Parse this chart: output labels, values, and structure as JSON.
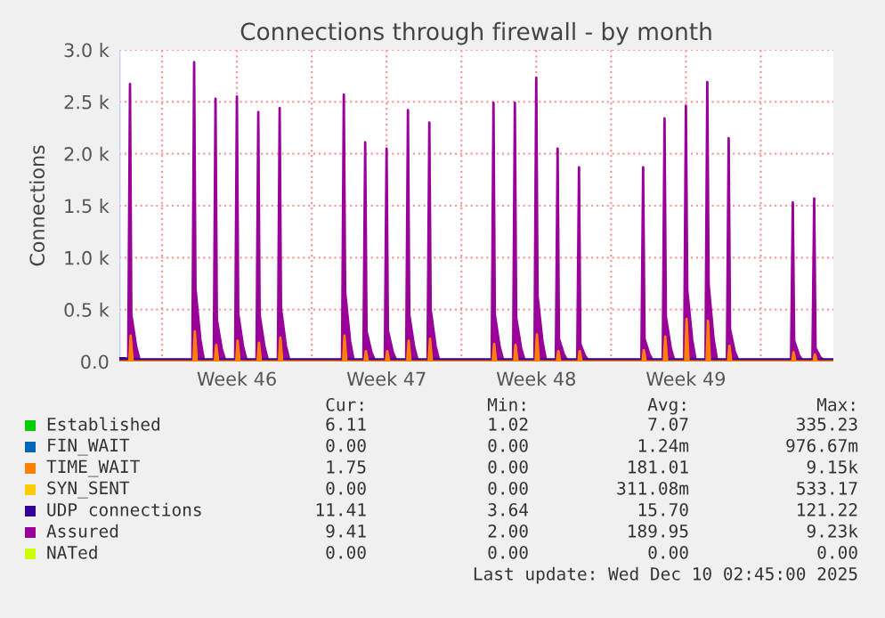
{
  "chart_data": {
    "type": "area",
    "title": "Connections through firewall - by month",
    "ylabel": "Connections",
    "xlim": [
      "2025-11-08T00:00",
      "2025-12-11T09:30"
    ],
    "xticks": [
      {
        "value": "2025-11-10T00:00",
        "label": null
      },
      {
        "value": "2025-11-13T12:00",
        "label": "Week 46"
      },
      {
        "value": "2025-11-17T00:00",
        "label": null
      },
      {
        "value": "2025-11-20T12:00",
        "label": "Week 47"
      },
      {
        "value": "2025-11-24T00:00",
        "label": null
      },
      {
        "value": "2025-11-27T12:00",
        "label": "Week 48"
      },
      {
        "value": "2025-12-01T00:00",
        "label": null
      },
      {
        "value": "2025-12-04T12:00",
        "label": "Week 49"
      },
      {
        "value": "2025-12-08T00:00",
        "label": null
      }
    ],
    "ylim": [
      0,
      3000
    ],
    "yticks": [
      {
        "value": 0,
        "label": "0.0"
      },
      {
        "value": 500,
        "label": "0.5 k"
      },
      {
        "value": 1000,
        "label": "1.0 k"
      },
      {
        "value": 1500,
        "label": "1.5 k"
      },
      {
        "value": 2000,
        "label": "2.0 k"
      },
      {
        "value": 2500,
        "label": "2.5 k"
      },
      {
        "value": 3000,
        "label": "3.0 k"
      }
    ],
    "grid": true,
    "legend": "bottom",
    "series": [
      {
        "name": "Established",
        "color": "#00cc00"
      },
      {
        "name": "FIN_WAIT",
        "color": "#0066b3"
      },
      {
        "name": "TIME_WAIT",
        "color": "#ff8000",
        "x": [
          "2025-11-08T00:00",
          "2025-11-08T11:15",
          "2025-11-08T12:45",
          "2025-11-08T15:00",
          "2025-11-11T11:15",
          "2025-11-11T12:45",
          "2025-11-11T15:00",
          "2025-11-12T11:15",
          "2025-11-12T12:45",
          "2025-11-12T15:00",
          "2025-11-13T11:15",
          "2025-11-13T12:45",
          "2025-11-13T15:00",
          "2025-11-14T11:15",
          "2025-11-14T12:45",
          "2025-11-14T15:00",
          "2025-11-15T11:15",
          "2025-11-15T12:45",
          "2025-11-15T15:00",
          "2025-11-18T11:15",
          "2025-11-18T12:45",
          "2025-11-18T15:00",
          "2025-11-19T11:15",
          "2025-11-19T12:45",
          "2025-11-19T15:00",
          "2025-11-20T11:15",
          "2025-11-20T12:45",
          "2025-11-20T15:00",
          "2025-11-21T11:15",
          "2025-11-21T12:45",
          "2025-11-21T15:00",
          "2025-11-22T11:15",
          "2025-11-22T12:45",
          "2025-11-22T15:00",
          "2025-11-25T11:15",
          "2025-11-25T12:45",
          "2025-11-25T15:00",
          "2025-11-26T11:15",
          "2025-11-26T12:45",
          "2025-11-26T15:00",
          "2025-11-27T11:15",
          "2025-11-27T12:45",
          "2025-11-27T15:00",
          "2025-11-28T11:15",
          "2025-11-28T12:45",
          "2025-11-28T15:00",
          "2025-11-29T11:15",
          "2025-11-29T12:45",
          "2025-11-29T15:00",
          "2025-12-02T11:15",
          "2025-12-02T12:45",
          "2025-12-02T15:00",
          "2025-12-03T11:15",
          "2025-12-03T12:45",
          "2025-12-03T15:00",
          "2025-12-04T11:15",
          "2025-12-04T12:45",
          "2025-12-04T15:00",
          "2025-12-05T11:15",
          "2025-12-05T12:45",
          "2025-12-05T15:00",
          "2025-12-06T11:15",
          "2025-12-06T12:45",
          "2025-12-06T15:00",
          "2025-12-09T11:15",
          "2025-12-09T12:45",
          "2025-12-09T15:00",
          "2025-12-10T11:15",
          "2025-12-10T12:45",
          "2025-12-10T15:00",
          "2025-12-11T09:30"
        ],
        "values": [
          0,
          0,
          250,
          0,
          0,
          290,
          0,
          0,
          160,
          0,
          0,
          200,
          0,
          0,
          180,
          0,
          0,
          230,
          0,
          0,
          250,
          0,
          0,
          100,
          0,
          0,
          100,
          0,
          0,
          200,
          0,
          0,
          220,
          0,
          0,
          170,
          0,
          0,
          160,
          0,
          0,
          260,
          0,
          0,
          100,
          0,
          0,
          100,
          0,
          0,
          110,
          0,
          0,
          240,
          0,
          0,
          410,
          0,
          0,
          390,
          0,
          0,
          150,
          0,
          0,
          90,
          0,
          0,
          70,
          0,
          0
        ]
      },
      {
        "name": "SYN_SENT",
        "color": "#ffcc00"
      },
      {
        "name": "UDP connections",
        "color": "#330099",
        "x": [
          "2025-11-08T00:00",
          "2025-11-08T07:00",
          "2025-11-08T14:00",
          "2025-12-11T09:30"
        ],
        "values": [
          30,
          30,
          20,
          20
        ]
      },
      {
        "name": "Assured",
        "color": "#990099",
        "x": [
          "2025-11-08T00:00",
          "2025-11-08T10:00",
          "2025-11-08T12:00",
          "2025-11-08T13:30",
          "2025-11-08T19:00",
          "2025-11-08T23:00",
          "2025-11-11T10:00",
          "2025-11-11T12:00",
          "2025-11-11T13:30",
          "2025-11-11T19:00",
          "2025-11-11T23:00",
          "2025-11-12T10:00",
          "2025-11-12T12:00",
          "2025-11-12T13:30",
          "2025-11-12T19:00",
          "2025-11-12T23:00",
          "2025-11-13T10:00",
          "2025-11-13T12:00",
          "2025-11-13T13:30",
          "2025-11-13T19:00",
          "2025-11-13T23:00",
          "2025-11-14T10:00",
          "2025-11-14T12:00",
          "2025-11-14T13:30",
          "2025-11-14T19:00",
          "2025-11-14T23:00",
          "2025-11-15T10:00",
          "2025-11-15T12:00",
          "2025-11-15T13:30",
          "2025-11-15T19:00",
          "2025-11-15T23:00",
          "2025-11-18T10:00",
          "2025-11-18T12:00",
          "2025-11-18T13:30",
          "2025-11-18T19:00",
          "2025-11-18T23:00",
          "2025-11-19T10:00",
          "2025-11-19T12:00",
          "2025-11-19T13:30",
          "2025-11-19T19:00",
          "2025-11-19T23:00",
          "2025-11-20T10:00",
          "2025-11-20T12:00",
          "2025-11-20T13:30",
          "2025-11-20T19:00",
          "2025-11-20T23:00",
          "2025-11-21T10:00",
          "2025-11-21T12:00",
          "2025-11-21T13:30",
          "2025-11-21T19:00",
          "2025-11-21T23:00",
          "2025-11-22T10:00",
          "2025-11-22T12:00",
          "2025-11-22T13:30",
          "2025-11-22T19:00",
          "2025-11-22T23:00",
          "2025-11-25T10:00",
          "2025-11-25T12:00",
          "2025-11-25T13:30",
          "2025-11-25T19:00",
          "2025-11-25T23:00",
          "2025-11-26T10:00",
          "2025-11-26T12:00",
          "2025-11-26T13:30",
          "2025-11-26T19:00",
          "2025-11-26T23:00",
          "2025-11-27T10:00",
          "2025-11-27T12:00",
          "2025-11-27T13:30",
          "2025-11-27T19:00",
          "2025-11-27T23:00",
          "2025-11-28T10:00",
          "2025-11-28T12:00",
          "2025-11-28T13:30",
          "2025-11-28T19:00",
          "2025-11-28T23:00",
          "2025-11-29T10:00",
          "2025-11-29T12:00",
          "2025-11-29T13:30",
          "2025-11-29T19:00",
          "2025-11-29T23:00",
          "2025-12-02T10:00",
          "2025-12-02T12:00",
          "2025-12-02T13:30",
          "2025-12-02T19:00",
          "2025-12-02T23:00",
          "2025-12-03T10:00",
          "2025-12-03T12:00",
          "2025-12-03T13:30",
          "2025-12-03T19:00",
          "2025-12-03T23:00",
          "2025-12-04T10:00",
          "2025-12-04T12:00",
          "2025-12-04T13:30",
          "2025-12-04T19:00",
          "2025-12-04T23:00",
          "2025-12-05T10:00",
          "2025-12-05T12:00",
          "2025-12-05T13:30",
          "2025-12-05T19:00",
          "2025-12-05T23:00",
          "2025-12-06T10:00",
          "2025-12-06T12:00",
          "2025-12-06T13:30",
          "2025-12-06T19:00",
          "2025-12-06T23:00",
          "2025-12-09T10:00",
          "2025-12-09T12:00",
          "2025-12-09T13:30",
          "2025-12-09T19:00",
          "2025-12-09T23:00",
          "2025-12-10T10:00",
          "2025-12-10T12:00",
          "2025-12-10T13:30",
          "2025-12-10T19:00",
          "2025-12-10T23:00",
          "2025-12-11T09:30"
        ],
        "values": [
          30,
          10,
          2670,
          450,
          140,
          10,
          10,
          2880,
          700,
          210,
          10,
          10,
          2530,
          400,
          120,
          10,
          10,
          2550,
          460,
          140,
          10,
          10,
          2400,
          450,
          140,
          10,
          10,
          2440,
          510,
          150,
          10,
          10,
          2570,
          670,
          200,
          10,
          10,
          2110,
          290,
          90,
          10,
          10,
          2050,
          300,
          90,
          10,
          10,
          2420,
          450,
          140,
          10,
          10,
          2300,
          500,
          150,
          10,
          10,
          2490,
          450,
          140,
          10,
          10,
          2490,
          420,
          130,
          10,
          10,
          2730,
          630,
          190,
          10,
          10,
          2050,
          220,
          70,
          10,
          10,
          1870,
          170,
          50,
          10,
          10,
          1870,
          220,
          70,
          10,
          10,
          2340,
          430,
          130,
          10,
          10,
          2460,
          690,
          210,
          10,
          10,
          2690,
          740,
          220,
          10,
          10,
          2150,
          310,
          90,
          10,
          10,
          1530,
          200,
          60,
          10,
          10,
          1570,
          130,
          40,
          10,
          10
        ]
      },
      {
        "name": "NATed",
        "color": "#ccff00"
      }
    ],
    "annotations": [
      "Cur:",
      "Min:",
      "Avg:",
      "Max:",
      "6.11",
      "1.02",
      "7.07",
      "335.23",
      "0.00",
      "0.00",
      "1.24m",
      "976.67m",
      "1.75",
      "0.00",
      "181.01",
      "9.15k",
      "0.00",
      "0.00",
      "311.08m",
      "533.17",
      "11.41",
      "3.64",
      "15.70",
      "121.22",
      "9.41",
      "2.00",
      "189.95",
      "9.23k",
      "0.00",
      "0.00",
      "0.00",
      "0.00",
      "Last update: Wed Dec 10 02:45:00 2025"
    ]
  }
}
